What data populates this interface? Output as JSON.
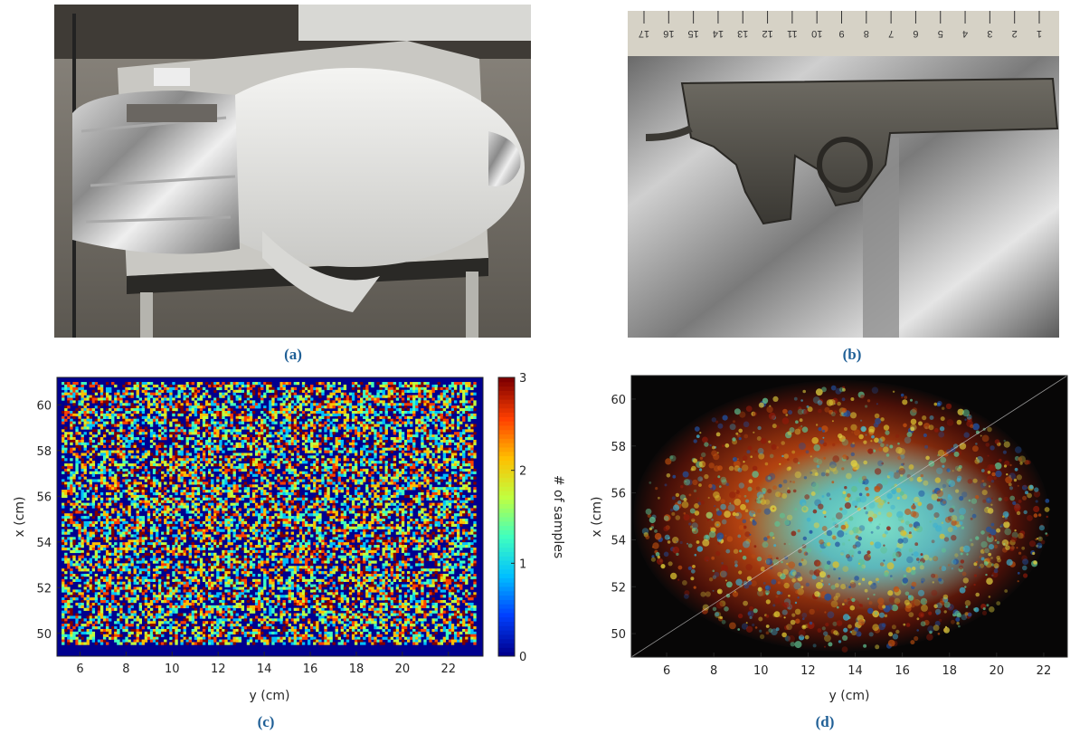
{
  "panels": {
    "a": {
      "caption": "(a)"
    },
    "b": {
      "caption": "(b)",
      "ruler_numbers": [
        "17",
        "16",
        "15",
        "14",
        "13",
        "12",
        "11",
        "10",
        "9",
        "8",
        "7",
        "6",
        "5",
        "4",
        "3",
        "2",
        "1"
      ]
    },
    "c": {
      "caption": "(c)"
    },
    "d": {
      "caption": "(d)"
    }
  },
  "chart_data": [
    {
      "type": "heatmap",
      "panel": "c",
      "xlabel": "y (cm)",
      "ylabel": "x (cm)",
      "xlim": [
        5,
        23.5
      ],
      "ylim": [
        49,
        61.2
      ],
      "xticks": [
        6,
        8,
        10,
        12,
        14,
        16,
        18,
        20,
        22
      ],
      "yticks": [
        50,
        52,
        54,
        56,
        58,
        60
      ],
      "colorbar": {
        "label": "# of samples",
        "min": 0,
        "max": 3,
        "ticks": [
          0,
          1,
          2,
          3
        ]
      },
      "colormap": [
        "#00008f",
        "#0040ff",
        "#00c0ff",
        "#40ffbf",
        "#c0ff40",
        "#ffbf00",
        "#ff4000",
        "#800000"
      ],
      "description_values": "Random sparse sampling; each cell holds 0–3 samples across the scanned aperture"
    },
    {
      "type": "heatmap",
      "panel": "d",
      "xlabel": "y (cm)",
      "ylabel": "x (cm)",
      "xlim": [
        4.5,
        23
      ],
      "ylim": [
        49,
        61
      ],
      "xticks": [
        6,
        8,
        10,
        12,
        14,
        16,
        18,
        20,
        22
      ],
      "yticks": [
        50,
        52,
        54,
        56,
        58,
        60
      ]
    }
  ]
}
